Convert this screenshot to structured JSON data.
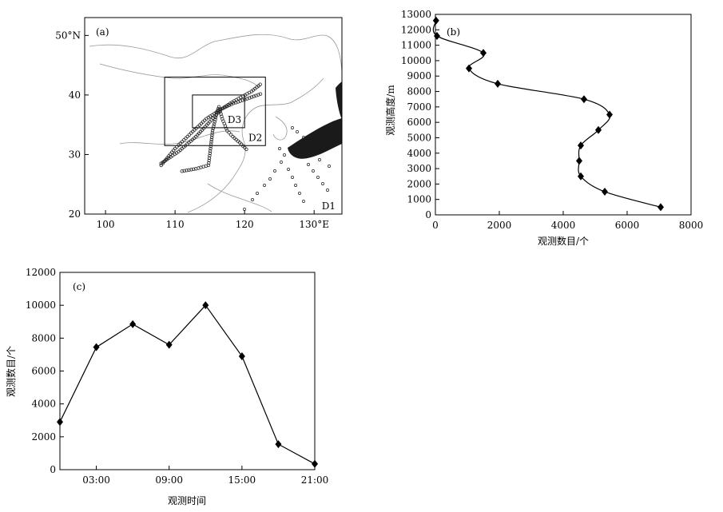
{
  "chart_data": [
    {
      "panel_label": "(a)",
      "type": "map",
      "x_ticks": [
        "100",
        "110",
        "120",
        "130°E"
      ],
      "x_tick_values": [
        100,
        110,
        120,
        130
      ],
      "y_ticks": [
        "20",
        "30",
        "40",
        "50°N"
      ],
      "y_tick_values": [
        20,
        30,
        40,
        50
      ],
      "xlim": [
        97,
        134
      ],
      "ylim": [
        20,
        53
      ],
      "domains": [
        {
          "label": "D1",
          "lon": [
            97,
            134
          ],
          "lat": [
            20,
            53
          ]
        },
        {
          "label": "D2",
          "lon": [
            108.5,
            123
          ],
          "lat": [
            31.5,
            43
          ]
        },
        {
          "label": "D3",
          "lon": [
            112.5,
            120
          ],
          "lat": [
            34.5,
            40
          ]
        }
      ],
      "tracks": [
        {
          "points": [
            [
              108,
              28.2
            ],
            [
              110,
              31
            ],
            [
              112.3,
              33.6
            ],
            [
              114.5,
              36
            ],
            [
              116.2,
              37.3
            ],
            [
              118.5,
              39
            ],
            [
              121,
              40.6
            ],
            [
              122.5,
              42
            ]
          ]
        },
        {
          "points": [
            [
              108,
              28.5
            ],
            [
              110.5,
              30.5
            ],
            [
              113,
              33
            ],
            [
              115,
              35.5
            ],
            [
              116.6,
              37.6
            ],
            [
              118.4,
              38.6
            ],
            [
              120.7,
              39.5
            ],
            [
              122.6,
              40.3
            ]
          ]
        },
        {
          "points": [
            [
              111,
              27.2
            ],
            [
              113,
              27.6
            ],
            [
              114.8,
              28.2
            ],
            [
              115.1,
              31
            ],
            [
              115.4,
              34
            ],
            [
              116,
              37
            ],
            [
              116.3,
              38
            ]
          ]
        },
        {
          "points": [
            [
              116.3,
              38
            ],
            [
              116.8,
              36
            ],
            [
              117.5,
              34
            ],
            [
              118.3,
              33
            ],
            [
              119.3,
              32
            ],
            [
              120.5,
              30.6
            ]
          ]
        }
      ]
    },
    {
      "panel_label": "(b)",
      "type": "line",
      "xlabel": "观测数目/个",
      "ylabel": "观测高度/m",
      "xlim": [
        0,
        8000
      ],
      "ylim": [
        0,
        13000
      ],
      "x_ticks": [
        "0",
        "2000",
        "4000",
        "6000",
        "8000"
      ],
      "x_tick_values": [
        0,
        2000,
        4000,
        6000,
        8000
      ],
      "y_ticks": [
        "0",
        "1000",
        "2000",
        "3000",
        "4000",
        "5000",
        "6000",
        "7000",
        "8000",
        "9000",
        "10000",
        "11000",
        "12000",
        "13000"
      ],
      "y_tick_values": [
        0,
        1000,
        2000,
        3000,
        4000,
        5000,
        6000,
        7000,
        8000,
        9000,
        10000,
        11000,
        12000,
        13000
      ],
      "series": [
        {
          "x": [
            7050,
            5300,
            4550,
            4500,
            4550,
            5100,
            5450,
            4650,
            1950,
            1050,
            1500,
            50,
            20
          ],
          "y": [
            500,
            1500,
            2500,
            3500,
            4500,
            5500,
            6500,
            7500,
            8500,
            9500,
            10500,
            11600,
            12600
          ]
        }
      ]
    },
    {
      "panel_label": "(c)",
      "type": "line",
      "xlabel": "观测时间",
      "ylabel": "观测数目/个",
      "xlim": [
        0,
        21
      ],
      "ylim": [
        0,
        12000
      ],
      "x_ticks": [
        "03:00",
        "09:00",
        "15:00",
        "21:00"
      ],
      "x_tick_values": [
        3,
        9,
        15,
        21
      ],
      "y_ticks": [
        "0",
        "2000",
        "4000",
        "6000",
        "8000",
        "10000",
        "12000"
      ],
      "y_tick_values": [
        0,
        2000,
        4000,
        6000,
        8000,
        10000,
        12000
      ],
      "series": [
        {
          "x": [
            0,
            3,
            6,
            9,
            12,
            15,
            18,
            21
          ],
          "y": [
            2900,
            7450,
            8850,
            7600,
            10000,
            6900,
            1550,
            350
          ]
        }
      ]
    }
  ]
}
